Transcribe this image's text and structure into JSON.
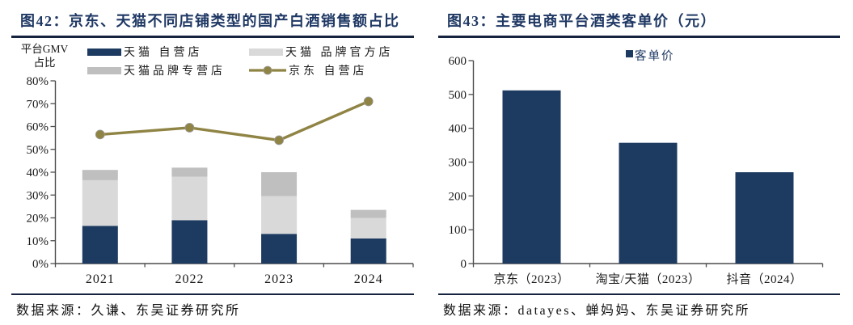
{
  "panels": {
    "left": {
      "title": "图42：京东、天猫不同店铺类型的国产白酒销售额占比",
      "source": "数据来源：久谦、东吴证券研究所"
    },
    "right": {
      "title": "图43：主要电商平台酒类客单价（元）",
      "source": "数据来源：datayes、蝉妈妈、东吴证券研究所"
    }
  },
  "chart_data": [
    {
      "type": "bar",
      "subtype": "stacked-bars-with-line",
      "title": "京东、天猫不同店铺类型的国产白酒销售额占比",
      "categories": [
        "2021",
        "2022",
        "2023",
        "2024"
      ],
      "series": [
        {
          "name": "天猫 自营店",
          "type": "bar",
          "color": "#1d3a60",
          "values": [
            16.5,
            19,
            13,
            11
          ]
        },
        {
          "name": "天猫 品牌官方店",
          "type": "bar",
          "color": "#d9d9d9",
          "values": [
            20,
            19,
            16.5,
            9
          ]
        },
        {
          "name": "天猫品牌专营店",
          "type": "bar",
          "color": "#bfbfbf",
          "values": [
            4.5,
            4,
            10.5,
            3.5
          ]
        },
        {
          "name": "京东 自营店",
          "type": "line",
          "color": "#8f8444",
          "values": [
            56.5,
            59.5,
            54,
            71
          ]
        }
      ],
      "stacked_totals": [
        41,
        42,
        40,
        23.5
      ],
      "ylabel_lines": [
        "平台GMV",
        "占比"
      ],
      "ylim": [
        0,
        80
      ],
      "ytick_step": 10,
      "ytick_suffix": "%",
      "legend_position": "top",
      "grid": false
    },
    {
      "type": "bar",
      "title": "主要电商平台酒类客单价（元）",
      "categories": [
        "京东（2023）",
        "淘宝/天猫（2023）",
        "抖音（2024）"
      ],
      "series": [
        {
          "name": "客单价",
          "type": "bar",
          "color": "#1d3a60",
          "values": [
            512,
            357,
            270
          ]
        }
      ],
      "ylim": [
        0,
        600
      ],
      "ytick_step": 100,
      "ytick_suffix": "",
      "legend_position": "top",
      "grid": false
    }
  ],
  "colors": {
    "title_navy": "#1f3864",
    "bar_navy": "#1d3a60",
    "light_gray": "#d9d9d9",
    "mid_gray": "#bfbfbf",
    "olive_line": "#8f8444",
    "axis": "#4d4d4d",
    "rule": "#16233f",
    "text": "#1a1a1a"
  }
}
